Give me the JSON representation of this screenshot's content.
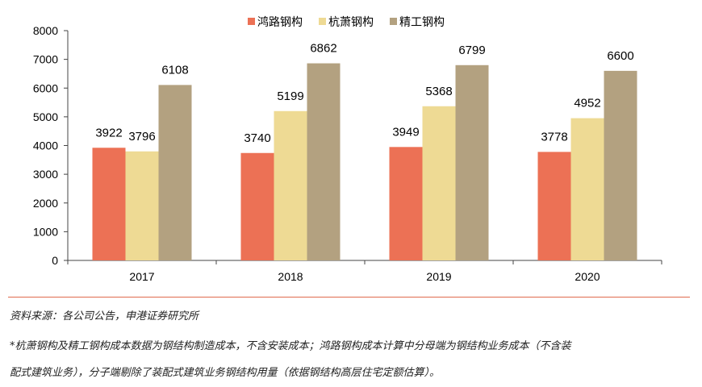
{
  "chart_data": {
    "type": "bar",
    "categories": [
      "2017",
      "2018",
      "2019",
      "2020"
    ],
    "series": [
      {
        "name": "鸿路钢构",
        "values": [
          3922,
          3740,
          3949,
          3778
        ],
        "color": "#ec7155"
      },
      {
        "name": "杭萧钢构",
        "values": [
          3796,
          5199,
          5368,
          4952
        ],
        "color": "#eeda94"
      },
      {
        "name": "精工钢构",
        "values": [
          6108,
          6862,
          6799,
          6600
        ],
        "color": "#b3a180"
      }
    ],
    "ylim": [
      0,
      8000
    ],
    "yticks": [
      0,
      1000,
      2000,
      3000,
      4000,
      5000,
      6000,
      7000,
      8000
    ],
    "legend_position": "top",
    "grid": false,
    "data_labels": true
  },
  "notes": {
    "source": "资料来源：各公司公告，申港证券研究所",
    "line1": "*杭萧钢构及精工钢构成本数据为钢结构制造成本，不含安装成本；鸿路钢构成本计算中分母端为钢结构业务成本（不含装",
    "line2": "配式建筑业务），分子端剔除了装配式建筑业务钢结构用量（依据钢结构高层住宅定额估算）。"
  }
}
